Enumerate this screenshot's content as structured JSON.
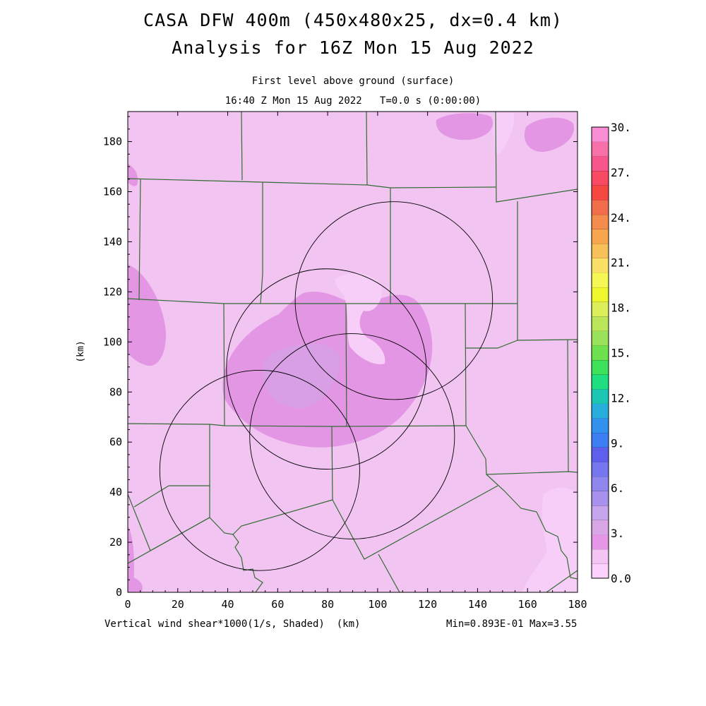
{
  "titles": {
    "line1": "CASA DFW 400m (450x480x25, dx=0.4 km)",
    "line2": "Analysis for 16Z Mon 15 Aug 2022",
    "sub1": "First level above ground (surface)",
    "sub2": "16:40 Z Mon 15 Aug 2022   T=0.0 s (0:00:00)"
  },
  "footer": {
    "left": "Vertical wind shear*1000(1/s, Shaded)  (km)",
    "right": "Min=0.893E-01 Max=3.55"
  },
  "chart_data": {
    "type": "heatmap",
    "title": "CASA DFW 400m (450x480x25, dx=0.4 km)",
    "subtitle": "Analysis for 16Z Mon 15 Aug 2022",
    "xlabel": "(km)",
    "ylabel": "(km)",
    "xlim": [
      0,
      180
    ],
    "ylim": [
      0,
      192
    ],
    "x_ticks": [
      0,
      20,
      40,
      60,
      80,
      100,
      120,
      140,
      160,
      180
    ],
    "y_ticks": [
      0,
      20,
      40,
      60,
      80,
      100,
      120,
      140,
      160,
      180
    ],
    "field": "Vertical wind shear*1000(1/s, Shaded)",
    "min": 0.0893,
    "max": 3.55,
    "colorbar": {
      "labels": [
        "30.",
        "27.",
        "24.",
        "21.",
        "18.",
        "15.",
        "12.",
        "9.",
        "6.",
        "3.",
        "0.0"
      ],
      "label_values": [
        30,
        27,
        24,
        21,
        18,
        15,
        12,
        9,
        6,
        3,
        0
      ],
      "min": 0,
      "max": 30,
      "colors": [
        "#fcd2fc",
        "#f4c4f4",
        "#e696e6",
        "#d9a6e6",
        "#c7a4ee",
        "#a992ee",
        "#8f86ee",
        "#7676ee",
        "#5f5fee",
        "#3e7ef4",
        "#3291ec",
        "#26aedc",
        "#1cc6b2",
        "#1ede80",
        "#3ce25a",
        "#6ee24e",
        "#9ae25a",
        "#bce65a",
        "#dcee5a",
        "#eef62e",
        "#f6f654",
        "#fae064",
        "#f8c058",
        "#f8a64e",
        "#f48c4e",
        "#f26d4a",
        "#f64840",
        "#f84a62",
        "#f8558c",
        "#f870a8",
        "#fa8ed4"
      ]
    },
    "radar_rings": [
      {
        "center": [
          106.5,
          116.5
        ],
        "radius": 39.5
      },
      {
        "center": [
          79.5,
          89.2
        ],
        "radius": 40
      },
      {
        "center": [
          89.8,
          62.3
        ],
        "radius": 41
      },
      {
        "center": [
          52.8,
          48.7
        ],
        "radius": 40
      }
    ]
  }
}
